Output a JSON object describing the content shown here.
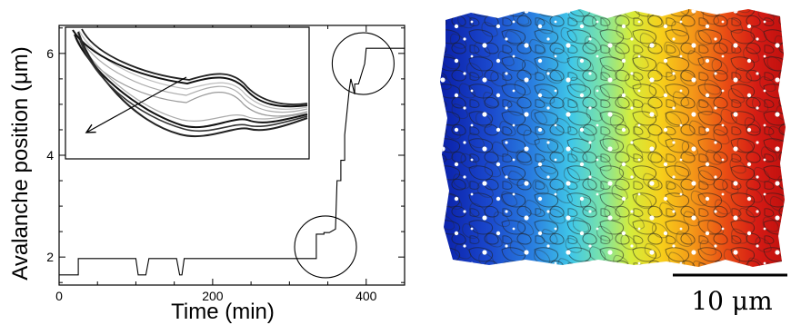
{
  "chart_data": {
    "type": "line",
    "xlabel": "Time (min)",
    "ylabel": "Avalanche position (μm)",
    "xlim": [
      0,
      450
    ],
    "ylim": [
      1.45,
      6.55
    ],
    "xticks": [
      0,
      200,
      400
    ],
    "yticks": [
      2,
      4,
      6
    ],
    "series": [
      {
        "x": [
          0,
          25,
          25,
          100,
          103,
          113,
          117,
          153,
          157,
          160,
          163,
          335,
          335,
          345,
          345,
          352,
          360,
          362,
          367,
          367,
          372,
          372,
          378,
          380,
          385,
          385,
          390,
          398,
          400,
          450
        ],
        "y": [
          1.65,
          1.65,
          1.97,
          1.97,
          1.65,
          1.65,
          1.97,
          1.97,
          1.65,
          1.65,
          1.97,
          1.97,
          2.45,
          2.45,
          2.48,
          2.48,
          2.55,
          3.5,
          3.5,
          3.9,
          3.9,
          4.4,
          5.3,
          5.5,
          5.2,
          5.4,
          5.4,
          5.8,
          6.1,
          6.1
        ]
      }
    ],
    "circles": [
      {
        "x": 347,
        "y": 2.2
      },
      {
        "x": 396,
        "y": 5.8
      }
    ]
  },
  "scale_bar": {
    "label": "10 μm"
  }
}
